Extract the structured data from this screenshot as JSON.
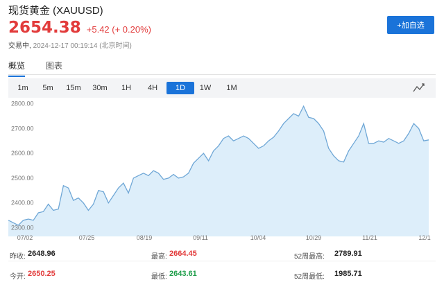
{
  "header": {
    "title": "现货黄金 (XAUUSD)",
    "price": "2654.38",
    "change": "+5.42 (+ 0.20%)",
    "status_label": "交易中,",
    "timestamp": "2024-12-17 00:19:14 (北京时间)",
    "add_button": "+加自选"
  },
  "tabs": [
    {
      "label": "概览",
      "active": true
    },
    {
      "label": "图表",
      "active": false
    }
  ],
  "intervals": [
    {
      "label": "1m",
      "active": false
    },
    {
      "label": "5m",
      "active": false
    },
    {
      "label": "15m",
      "active": false
    },
    {
      "label": "30m",
      "active": false
    },
    {
      "label": "1H",
      "active": false
    },
    {
      "label": "4H",
      "active": false
    },
    {
      "label": "1D",
      "active": true
    },
    {
      "label": "1W",
      "active": false
    },
    {
      "label": "1M",
      "active": false
    }
  ],
  "chart_type_icon": "line-chart-icon",
  "colors": {
    "accent": "#1a73d9",
    "up": "#e23b3b",
    "down": "#1e9e4a",
    "line": "#6fa7d6",
    "fill": "#ddeefa"
  },
  "chart_data": {
    "type": "area",
    "y_ticks": [
      "2300.00",
      "2400.00",
      "2500.00",
      "2600.00",
      "2700.00",
      "2800.00"
    ],
    "x_ticks": [
      "07/02",
      "07/25",
      "08/19",
      "09/11",
      "10/04",
      "10/29",
      "11/21",
      "12/1"
    ],
    "ylim": [
      2265,
      2810
    ],
    "grid": false,
    "x": [
      0,
      2,
      4,
      6,
      8,
      10,
      12,
      14,
      16,
      18,
      20,
      22,
      24,
      26,
      28,
      30,
      32,
      34,
      36,
      38,
      40,
      42,
      44,
      46,
      48,
      50,
      52,
      54,
      56,
      58,
      60,
      62,
      64,
      66,
      68,
      70,
      72,
      74,
      76,
      78,
      80,
      82,
      84,
      86,
      88,
      90,
      92,
      94,
      96,
      98,
      100,
      102,
      104,
      106,
      108,
      110,
      112,
      114,
      116,
      118,
      120,
      122,
      124,
      126,
      128,
      130,
      132,
      134,
      136,
      138,
      140,
      142,
      144,
      146,
      148,
      150,
      152,
      154,
      156,
      158,
      160,
      162,
      164,
      166,
      168
    ],
    "values": [
      2330,
      2320,
      2310,
      2330,
      2335,
      2330,
      2360,
      2365,
      2395,
      2370,
      2375,
      2470,
      2460,
      2410,
      2420,
      2400,
      2370,
      2395,
      2450,
      2445,
      2400,
      2430,
      2460,
      2480,
      2440,
      2500,
      2510,
      2520,
      2510,
      2530,
      2520,
      2495,
      2500,
      2515,
      2500,
      2505,
      2520,
      2560,
      2580,
      2600,
      2570,
      2610,
      2630,
      2660,
      2670,
      2650,
      2660,
      2670,
      2660,
      2640,
      2620,
      2630,
      2650,
      2665,
      2690,
      2720,
      2740,
      2760,
      2750,
      2790,
      2745,
      2740,
      2720,
      2690,
      2620,
      2590,
      2570,
      2565,
      2610,
      2640,
      2670,
      2720,
      2640,
      2640,
      2650,
      2645,
      2660,
      2650,
      2640,
      2650,
      2680,
      2720,
      2700,
      2650,
      2654
    ]
  },
  "stats": [
    [
      {
        "label": "昨收:",
        "value": "2648.96",
        "color": ""
      },
      {
        "label": "最高:",
        "value": "2664.45",
        "color": "up"
      },
      {
        "label": "52周最高:",
        "value": "2789.91",
        "color": ""
      }
    ],
    [
      {
        "label": "今开:",
        "value": "2650.25",
        "color": "up"
      },
      {
        "label": "最低:",
        "value": "2643.61",
        "color": "down"
      },
      {
        "label": "52周最低:",
        "value": "1985.71",
        "color": ""
      }
    ]
  ]
}
